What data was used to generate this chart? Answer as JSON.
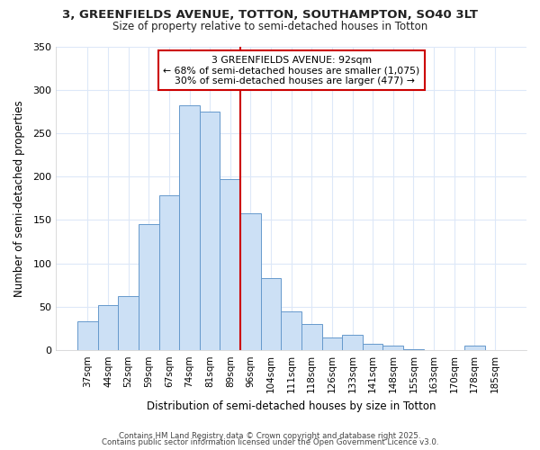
{
  "title_line1": "3, GREENFIELDS AVENUE, TOTTON, SOUTHAMPTON, SO40 3LT",
  "title_line2": "Size of property relative to semi-detached houses in Totton",
  "xlabel": "Distribution of semi-detached houses by size in Totton",
  "ylabel": "Number of semi-detached properties",
  "footer_line1": "Contains HM Land Registry data © Crown copyright and database right 2025.",
  "footer_line2": "Contains public sector information licensed under the Open Government Licence v3.0.",
  "categories": [
    "37sqm",
    "44sqm",
    "52sqm",
    "59sqm",
    "67sqm",
    "74sqm",
    "81sqm",
    "89sqm",
    "96sqm",
    "104sqm",
    "111sqm",
    "118sqm",
    "126sqm",
    "133sqm",
    "141sqm",
    "148sqm",
    "155sqm",
    "163sqm",
    "170sqm",
    "178sqm",
    "185sqm"
  ],
  "values": [
    33,
    52,
    62,
    145,
    178,
    282,
    275,
    197,
    158,
    83,
    45,
    30,
    15,
    18,
    7,
    5,
    1,
    0,
    0,
    5,
    0
  ],
  "bar_color": "#cce0f5",
  "bar_edge_color": "#6699cc",
  "property_label": "3 GREENFIELDS AVENUE: 92sqm",
  "pct_smaller": 68,
  "n_smaller": 1075,
  "pct_larger": 30,
  "n_larger": 477,
  "vline_color": "#cc0000",
  "annotation_box_color": "#cc0000",
  "bg_color": "#ffffff",
  "grid_color": "#dde8f8",
  "ylim": [
    0,
    350
  ],
  "yticks": [
    0,
    50,
    100,
    150,
    200,
    250,
    300,
    350
  ],
  "vline_index": 7.5
}
